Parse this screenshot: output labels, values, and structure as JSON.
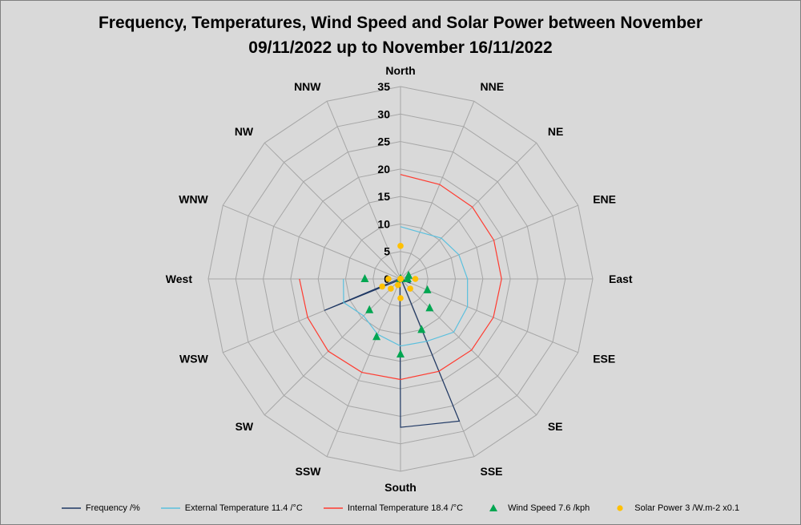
{
  "chart_data": {
    "type": "radar",
    "title": "Frequency, Temperatures, Wind Speed and Solar Power between November\n09/11/2022 up to November 16/11/2022",
    "categories": [
      "North",
      "NNE",
      "NE",
      "ENE",
      "East",
      "ESE",
      "SE",
      "SSE",
      "South",
      "SSW",
      "SW",
      "WSW",
      "West",
      "WNW",
      "NW",
      "NNW"
    ],
    "radial_axis": {
      "min": 0,
      "max": 35,
      "step": 5,
      "ticks": [
        "0",
        "5",
        "10",
        "15",
        "20",
        "25",
        "30",
        "35"
      ]
    },
    "grid": true,
    "legend_position": "bottom",
    "series": [
      {
        "name": "Frequency /%",
        "marker": "line",
        "color": "#1f3864",
        "values": [
          0.3,
          0.3,
          0.3,
          0.3,
          0.3,
          2,
          0.3,
          28,
          27,
          0.3,
          0.3,
          15,
          0.3,
          0.3,
          0.3,
          0.3
        ]
      },
      {
        "name": "External Temperature 11.4 /°C",
        "marker": "line",
        "color": "#5bc0de",
        "values": [
          9.5,
          9.2,
          10.5,
          11.5,
          12.2,
          13.2,
          13.7,
          12.3,
          12.2,
          10.9,
          9.5,
          11.2,
          10.4,
          null,
          null,
          null
        ]
      },
      {
        "name": "Internal Temperature 18.4 /°C",
        "marker": "line",
        "color": "#ff3b30",
        "values": [
          19.0,
          18.6,
          18.5,
          18.4,
          18.4,
          18.3,
          18.3,
          18.2,
          18.3,
          18.4,
          18.6,
          18.3,
          18.4,
          null,
          null,
          null
        ]
      },
      {
        "name": "Wind Speed 7.6 /kph",
        "marker": "triangle",
        "color": "#00a651",
        "values": [
          0,
          0,
          0,
          1.6,
          1.3,
          5.3,
          7.5,
          10.0,
          13.7,
          11.4,
          8.0,
          0,
          6.5,
          0,
          0,
          0
        ]
      },
      {
        "name": "Solar Power 3 /W.m-2 x0.1",
        "marker": "circle",
        "color": "#ffc000",
        "values": [
          6,
          0,
          0,
          0,
          2.7,
          0,
          2.5,
          0,
          3.5,
          1.2,
          2.5,
          3.6,
          2.2,
          0,
          0,
          0
        ]
      }
    ]
  }
}
